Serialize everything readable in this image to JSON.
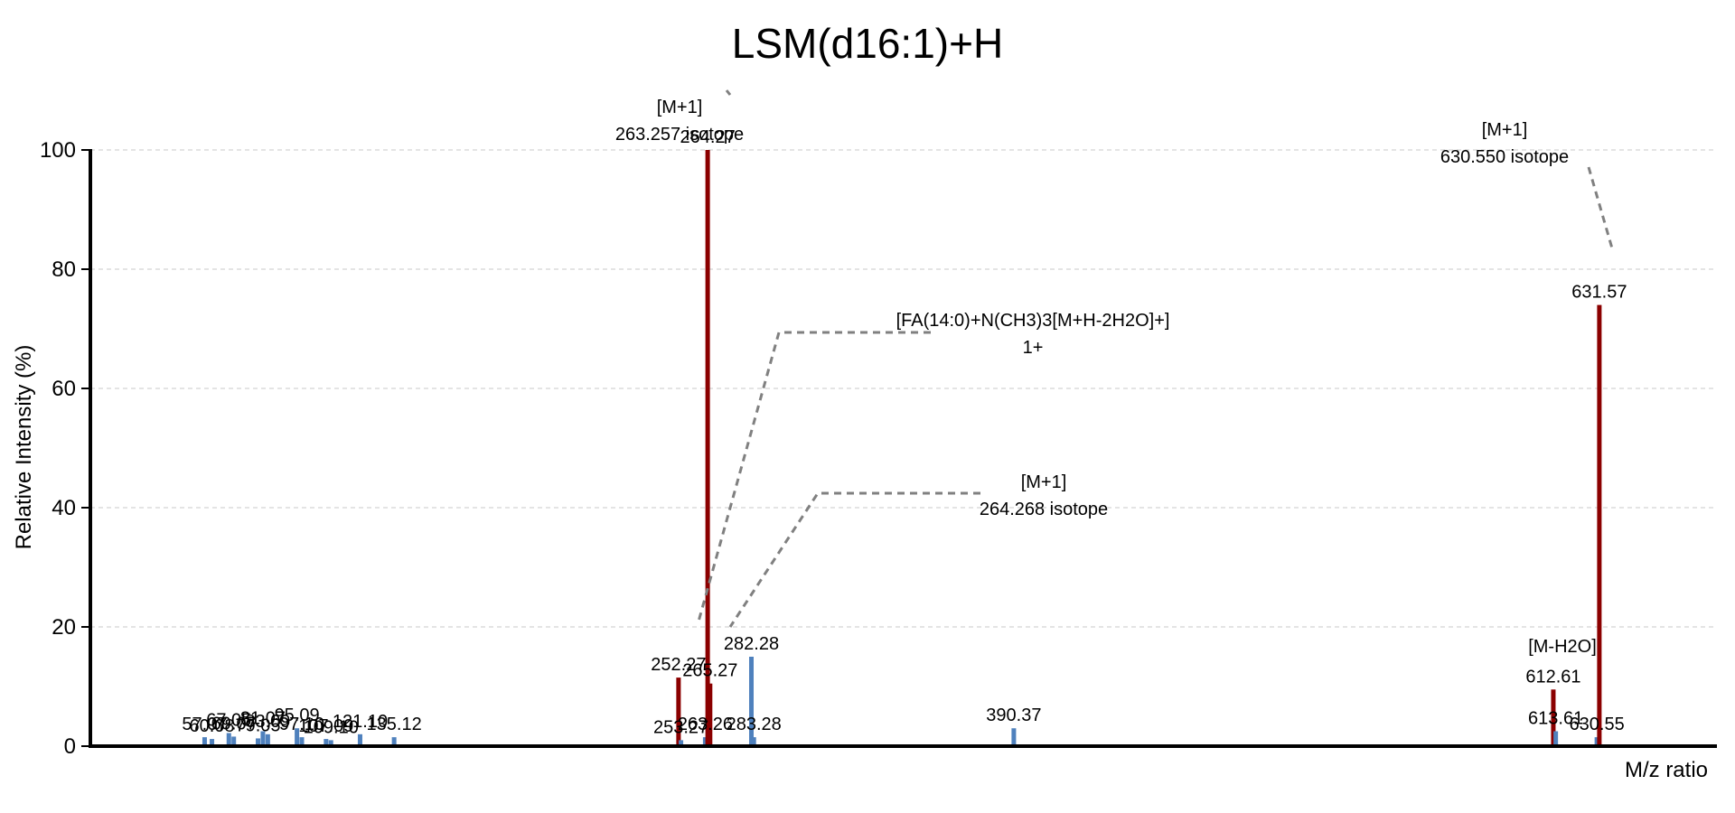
{
  "chart_data": {
    "type": "bar",
    "title": "LSM(d16:1)+H",
    "xlabel": "M/z ratio",
    "ylabel": "Relative Intensity (%)",
    "xlim": [
      10,
      680
    ],
    "ylim": [
      0,
      100
    ],
    "yticks": [
      0,
      20,
      40,
      60,
      80,
      100
    ],
    "grid": true,
    "colors": {
      "matched": "#8b0000",
      "unmatched": "#4f81bd"
    },
    "peaks": [
      {
        "mz": 57.07,
        "intensity": 1.5,
        "label": "57.07",
        "matched": false
      },
      {
        "mz": 60.08,
        "intensity": 1.2,
        "label": "60.08",
        "matched": false
      },
      {
        "mz": 67.05,
        "intensity": 2.2,
        "label": "67.05",
        "matched": false
      },
      {
        "mz": 69.07,
        "intensity": 1.6,
        "label": "69.07",
        "matched": false
      },
      {
        "mz": 79.05,
        "intensity": 1.3,
        "label": "79.05",
        "matched": false
      },
      {
        "mz": 81.07,
        "intensity": 2.5,
        "label": "81.07",
        "matched": false
      },
      {
        "mz": 83.09,
        "intensity": 2.0,
        "label": "83.09",
        "matched": false
      },
      {
        "mz": 95.09,
        "intensity": 3.0,
        "label": "95.09",
        "matched": false
      },
      {
        "mz": 97.1,
        "intensity": 1.5,
        "label": "97.10",
        "matched": false
      },
      {
        "mz": 107.09,
        "intensity": 1.2,
        "label": "107.09",
        "matched": false
      },
      {
        "mz": 109.1,
        "intensity": 1.0,
        "label": "109.10",
        "matched": false
      },
      {
        "mz": 121.1,
        "intensity": 2.0,
        "label": "121.10",
        "matched": false
      },
      {
        "mz": 135.12,
        "intensity": 1.5,
        "label": "135.12",
        "matched": false
      },
      {
        "mz": 252.27,
        "intensity": 11.5,
        "label": "252.27",
        "matched": true
      },
      {
        "mz": 253.27,
        "intensity": 1.0,
        "label": "253.27",
        "matched": false
      },
      {
        "mz": 263.26,
        "intensity": 1.5,
        "label": "263.26",
        "matched": false
      },
      {
        "mz": 264.27,
        "intensity": 100,
        "label": "264.27",
        "matched": true
      },
      {
        "mz": 265.27,
        "intensity": 10.5,
        "label": "265.27",
        "matched": true
      },
      {
        "mz": 282.28,
        "intensity": 15.0,
        "label": "282.28",
        "matched": false
      },
      {
        "mz": 283.28,
        "intensity": 1.5,
        "label": "283.28",
        "matched": false
      },
      {
        "mz": 390.37,
        "intensity": 3.0,
        "label": "390.37",
        "matched": false
      },
      {
        "mz": 612.61,
        "intensity": 9.5,
        "label": "612.61",
        "matched": true
      },
      {
        "mz": 613.61,
        "intensity": 2.5,
        "label": "613.61",
        "matched": false
      },
      {
        "mz": 630.55,
        "intensity": 1.5,
        "label": "630.55",
        "matched": false
      },
      {
        "mz": 631.57,
        "intensity": 74,
        "label": "631.57",
        "matched": true
      }
    ],
    "annotations": [
      {
        "lines": [
          "[M+1]",
          "263.257 isotope"
        ]
      },
      {
        "lines": [
          "[M+1]",
          "630.550 isotope"
        ]
      },
      {
        "lines": [
          "[FA(14:0)+N(CH3)3[M+H-2H2O]+]",
          "1+"
        ]
      },
      {
        "lines": [
          "[M+1]",
          "264.268 isotope"
        ]
      },
      {
        "lines": [
          "[M-H2O]"
        ]
      }
    ]
  }
}
